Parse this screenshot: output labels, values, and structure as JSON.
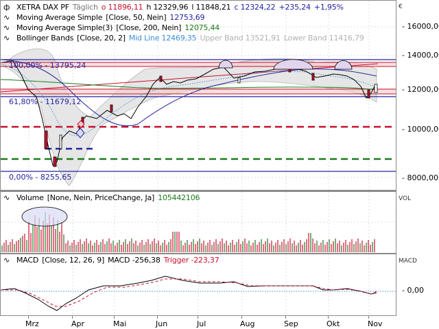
{
  "header": {
    "symbol": "XETRA DAX PF",
    "period": "Täglich",
    "open": "o 11896,11",
    "high": "h 12329,96",
    "low": "l 11848,21",
    "close": "c 12324,22",
    "change": "+235,24",
    "change_pct": "+1,95%"
  },
  "indicators": {
    "ma50": {
      "label": "Moving Average Simple",
      "params": "[Close, 50, Nein]",
      "value": "12753,69"
    },
    "ma200": {
      "label": "Moving Average Simple(3)",
      "params": "[Close, 200, Nein]",
      "value": "12075,44"
    },
    "bb": {
      "label": "Bollinger Bands",
      "params": "[Close, 20, 2]",
      "mid": "Mid Line 12469,35",
      "upper": "Upper Band 13521,91",
      "lower": "Lower Band 11416,79"
    },
    "volume": {
      "label": "Volume",
      "params": "[None, Nein, PriceChange, Ja]",
      "value": "105442106"
    },
    "macd": {
      "label": "MACD",
      "params": "[Close, 12, 26, 9]",
      "macd": "MACD -256,38",
      "trigger": "Trigger -223,37"
    }
  },
  "fib_labels": {
    "f100": "100,00% - 13795,24",
    "f618": "61,80% - 11679,12",
    "f0": "0,00% - 8255,65"
  },
  "axes": {
    "currency": "€",
    "price_ticks": [
      "16000,00",
      "14000,00",
      "12000,00",
      "10000,00",
      "8000,00"
    ],
    "vol_label": "VOL",
    "macd_label": "MACD",
    "macd_ticks": [
      "0,00"
    ],
    "months": [
      "Mrz",
      "Apr",
      "Mai",
      "Jun",
      "Jul",
      "Aug",
      "Sep",
      "Okt",
      "Nov"
    ]
  },
  "colors": {
    "up": "#1a7a1a",
    "down": "#c8102e",
    "ma50": "#2323a0",
    "ma200": "#1a7a1a",
    "bb_mid": "#3a8fd8",
    "fib": "#2323a0",
    "resistance": "#c8102e"
  },
  "chart_data": [
    {
      "type": "line",
      "title": "XETRA DAX PF Täglich",
      "ylabel": "€",
      "ylim": [
        7700,
        17000
      ],
      "y_ticks": [
        8000,
        10000,
        12000,
        14000,
        16000
      ],
      "x_ticks": [
        "Mrz",
        "Apr",
        "Mai",
        "Jun",
        "Jul",
        "Aug",
        "Sep",
        "Okt",
        "Nov"
      ],
      "grid": true,
      "series": [
        {
          "name": "Close (approx.)",
          "values": [
            13790,
            13500,
            12800,
            12000,
            11700,
            11200,
            10400,
            9200,
            8600,
            8900,
            9800,
            9900,
            10300,
            10500,
            10650,
            10800,
            10600,
            11100,
            11600,
            12200,
            12700,
            12300,
            12450,
            12550,
            12600,
            12900,
            12850,
            13050,
            12500,
            12750,
            12850,
            13100,
            13200,
            13250,
            13300,
            12700,
            12800,
            12850,
            12950,
            12600,
            12700,
            11700,
            11600,
            12324
          ]
        },
        {
          "name": "Moving Average Simple 50",
          "last": 12753.69
        },
        {
          "name": "Moving Average Simple 200",
          "last": 12075.44
        },
        {
          "name": "Bollinger Mid",
          "last": 12469.35
        },
        {
          "name": "Bollinger Upper",
          "last": 13521.91
        },
        {
          "name": "Bollinger Lower",
          "last": 11416.79
        }
      ],
      "annotations": [
        {
          "type": "fibonacci",
          "level": "100,00%",
          "value": 13795.24
        },
        {
          "type": "fibonacci",
          "level": "61,80%",
          "value": 11679.12
        },
        {
          "type": "fibonacci",
          "level": "0,00%",
          "value": 8255.65
        },
        {
          "type": "hline_dashed",
          "color": "red",
          "value": 10150
        },
        {
          "type": "hline_dashed",
          "color": "green",
          "value": 8750
        },
        {
          "type": "hline_dashed",
          "color": "blue",
          "value": 9200
        },
        {
          "type": "resistance_band",
          "color": "red",
          "from": 13300,
          "to": 13600
        },
        {
          "type": "support_band",
          "color": "red",
          "from": 11800,
          "to": 11950
        }
      ]
    },
    {
      "type": "bar",
      "title": "Volume",
      "last": 105442106,
      "note": "volume spike in March (circled)"
    },
    {
      "type": "line",
      "title": "MACD [Close, 12, 26, 9]",
      "y_ticks": [
        0
      ],
      "series": [
        {
          "name": "MACD",
          "last": -256.38
        },
        {
          "name": "Trigger",
          "last": -223.37
        }
      ]
    }
  ]
}
